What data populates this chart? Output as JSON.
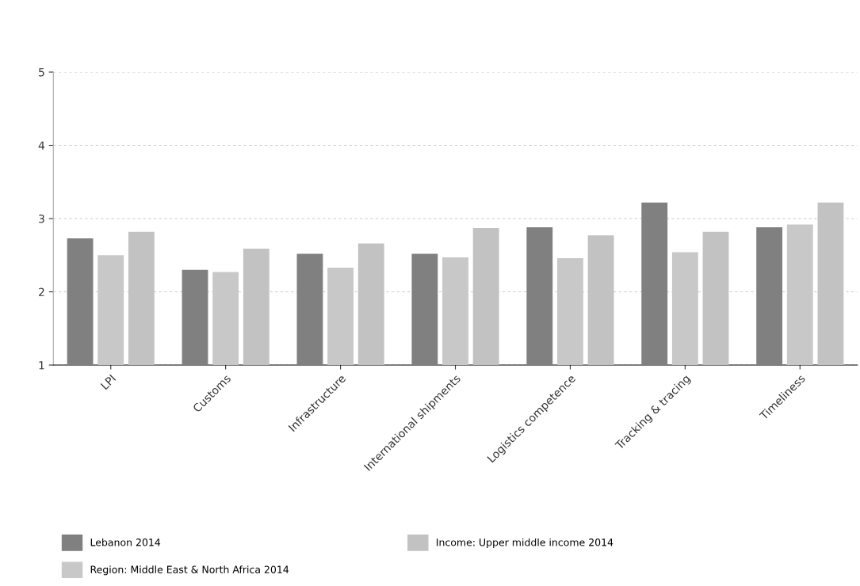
{
  "chart_data": {
    "type": "bar",
    "categories": [
      "LPI",
      "Customs",
      "Infrastructure",
      "International shipments",
      "Logistics competence",
      "Tracking & tracing",
      "Timeliness"
    ],
    "series": [
      {
        "name": "Lebanon 2014",
        "color": "#808080",
        "values": [
          2.73,
          2.3,
          2.52,
          2.52,
          2.88,
          3.22,
          2.88
        ]
      },
      {
        "name": "Region: Middle East & North Africa 2014",
        "color": "#c8c8c8",
        "values": [
          2.5,
          2.27,
          2.33,
          2.47,
          2.46,
          2.54,
          2.92
        ]
      },
      {
        "name": "Income: Upper middle income 2014",
        "color": "#c2c2c2",
        "values": [
          2.82,
          2.59,
          2.66,
          2.87,
          2.77,
          2.82,
          3.22
        ]
      }
    ],
    "ylim": [
      1,
      5
    ],
    "yticks": [
      1,
      2,
      3,
      4,
      5
    ],
    "grid": "y",
    "legend": "bottom"
  }
}
